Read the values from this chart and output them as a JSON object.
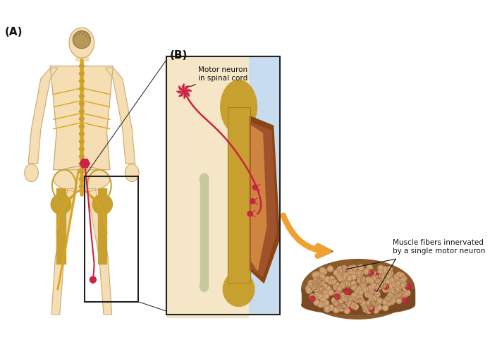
{
  "label_A": "(A)",
  "label_B": "(B)",
  "annotation_motor_neuron": "Motor neuron\nin spinal cord",
  "annotation_muscle_fibers": "Muscle fibers innervated\nby a single motor neuron",
  "bg_color": "#ffffff",
  "body_skin_color": "#F5DEB3",
  "body_outline_color": "#C8A870",
  "nerve_color": "#DAA520",
  "nerve_spine_color": "#DAA520",
  "motor_neuron_color": "#CC2244",
  "axon_color": "#CC2244",
  "box_outline_color": "#222222",
  "zoom_box_bg": "#F5E6C8",
  "zoom_box_border": "#aaaaaa",
  "bone_color": "#C8A855",
  "muscle_color": "#8B4513",
  "muscle_color2": "#A0522D",
  "arrow_color": "#F0A030",
  "arrow_outline": "#C07010",
  "annotation_color": "#111111",
  "figsize": [
    6.95,
    4.92
  ],
  "dpi": 100
}
